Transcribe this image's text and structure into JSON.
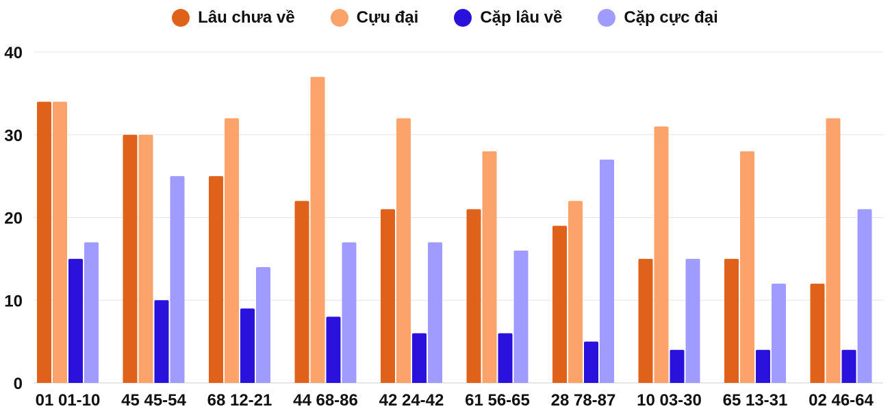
{
  "chart_data": {
    "type": "bar",
    "title": "",
    "xlabel": "",
    "ylabel": "",
    "ylim": [
      0,
      40
    ],
    "yticks": [
      0,
      10,
      20,
      30,
      40
    ],
    "grid": true,
    "legend_position": "top-center",
    "categories": [
      "01 01-10",
      "45 45-54",
      "68 12-21",
      "44 68-86",
      "42 24-42",
      "61 56-65",
      "28 78-87",
      "10 03-30",
      "65 13-31",
      "02 46-64"
    ],
    "series": [
      {
        "name": "Lâu chưa về",
        "color": "#e0621a",
        "values": [
          34,
          30,
          25,
          22,
          21,
          21,
          19,
          15,
          15,
          12
        ]
      },
      {
        "name": "Cựu đại",
        "color": "#fba36a",
        "values": [
          34,
          30,
          32,
          37,
          32,
          28,
          22,
          31,
          28,
          32
        ]
      },
      {
        "name": "Cặp lâu về",
        "color": "#2a12dc",
        "values": [
          15,
          10,
          9,
          8,
          6,
          6,
          5,
          4,
          4,
          4
        ]
      },
      {
        "name": "Cặp cực đại",
        "color": "#a09cff",
        "values": [
          17,
          25,
          14,
          17,
          17,
          16,
          27,
          15,
          12,
          21
        ]
      }
    ]
  }
}
